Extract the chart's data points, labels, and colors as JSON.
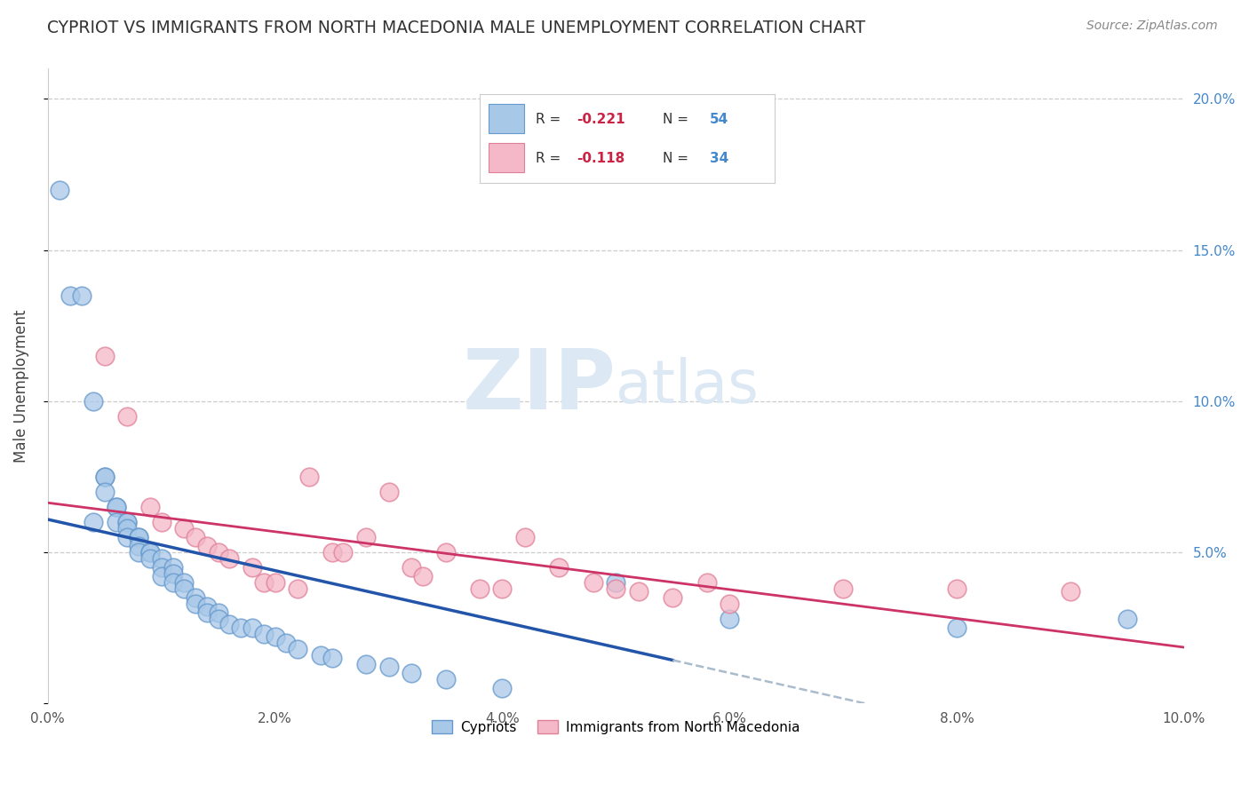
{
  "title": "CYPRIOT VS IMMIGRANTS FROM NORTH MACEDONIA MALE UNEMPLOYMENT CORRELATION CHART",
  "source": "Source: ZipAtlas.com",
  "ylabel": "Male Unemployment",
  "xlim": [
    0.0,
    0.1
  ],
  "ylim": [
    0.0,
    0.21
  ],
  "xticks": [
    0.0,
    0.02,
    0.04,
    0.06,
    0.08,
    0.1
  ],
  "yticks_left": [
    0.0,
    0.05,
    0.1,
    0.15,
    0.2
  ],
  "yticks_right": [
    0.05,
    0.1,
    0.15,
    0.2
  ],
  "right_tick_labels": [
    "5.0%",
    "10.0%",
    "15.0%",
    "20.0%"
  ],
  "xtick_labels": [
    "0.0%",
    "2.0%",
    "4.0%",
    "6.0%",
    "8.0%",
    "10.0%"
  ],
  "blue_color": "#a8c8e8",
  "blue_edge_color": "#6699cc",
  "pink_color": "#f4b8c8",
  "pink_edge_color": "#e08098",
  "blue_line_color": "#2255aa",
  "pink_line_color": "#cc3366",
  "dashed_line_color": "#aabbcc",
  "grid_color": "#cccccc",
  "title_color": "#333333",
  "right_axis_color": "#4488cc",
  "legend_R_color": "#cc2244",
  "legend_N_color": "#4488cc",
  "watermark_zip": "ZIP",
  "watermark_atlas": "atlas",
  "watermark_color": "#dde8f5",
  "blue_R": -0.221,
  "blue_N": 54,
  "pink_R": -0.118,
  "pink_N": 34,
  "cypriots_x": [
    0.001,
    0.002,
    0.003,
    0.004,
    0.004,
    0.005,
    0.005,
    0.005,
    0.006,
    0.006,
    0.006,
    0.007,
    0.007,
    0.007,
    0.007,
    0.008,
    0.008,
    0.008,
    0.008,
    0.009,
    0.009,
    0.009,
    0.01,
    0.01,
    0.01,
    0.011,
    0.011,
    0.011,
    0.012,
    0.012,
    0.013,
    0.013,
    0.014,
    0.014,
    0.015,
    0.015,
    0.016,
    0.017,
    0.018,
    0.019,
    0.02,
    0.021,
    0.022,
    0.024,
    0.025,
    0.028,
    0.03,
    0.032,
    0.035,
    0.04,
    0.05,
    0.06,
    0.08,
    0.095
  ],
  "cypriots_y": [
    0.17,
    0.135,
    0.135,
    0.1,
    0.06,
    0.075,
    0.075,
    0.07,
    0.065,
    0.065,
    0.06,
    0.06,
    0.06,
    0.058,
    0.055,
    0.055,
    0.055,
    0.052,
    0.05,
    0.05,
    0.05,
    0.048,
    0.048,
    0.045,
    0.042,
    0.045,
    0.043,
    0.04,
    0.04,
    0.038,
    0.035,
    0.033,
    0.032,
    0.03,
    0.03,
    0.028,
    0.026,
    0.025,
    0.025,
    0.023,
    0.022,
    0.02,
    0.018,
    0.016,
    0.015,
    0.013,
    0.012,
    0.01,
    0.008,
    0.005,
    0.04,
    0.028,
    0.025,
    0.028
  ],
  "macedonia_x": [
    0.005,
    0.007,
    0.009,
    0.01,
    0.012,
    0.013,
    0.014,
    0.015,
    0.016,
    0.018,
    0.019,
    0.02,
    0.022,
    0.023,
    0.025,
    0.026,
    0.028,
    0.03,
    0.032,
    0.033,
    0.035,
    0.038,
    0.04,
    0.042,
    0.045,
    0.048,
    0.05,
    0.052,
    0.055,
    0.058,
    0.06,
    0.07,
    0.08,
    0.09
  ],
  "macedonia_y": [
    0.115,
    0.095,
    0.065,
    0.06,
    0.058,
    0.055,
    0.052,
    0.05,
    0.048,
    0.045,
    0.04,
    0.04,
    0.038,
    0.075,
    0.05,
    0.05,
    0.055,
    0.07,
    0.045,
    0.042,
    0.05,
    0.038,
    0.038,
    0.055,
    0.045,
    0.04,
    0.038,
    0.037,
    0.035,
    0.04,
    0.033,
    0.038,
    0.038,
    0.037
  ]
}
